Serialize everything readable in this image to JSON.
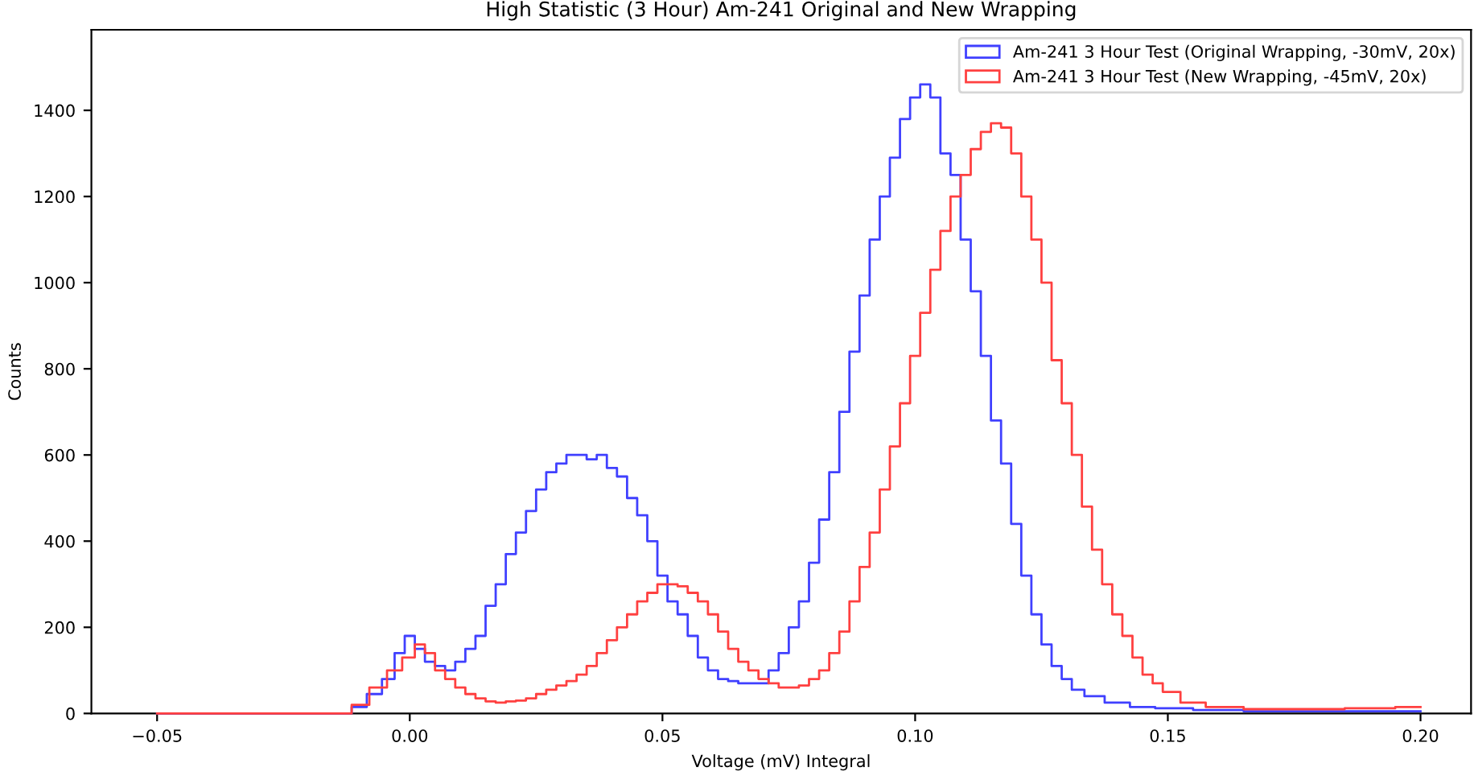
{
  "chart_data": {
    "type": "step",
    "title": "High Statistic (3 Hour) Am-241 Original and New Wrapping",
    "xlabel": "Voltage (mV) Integral",
    "ylabel": "Counts",
    "xlim": [
      -0.063,
      0.21
    ],
    "ylim": [
      0,
      1587
    ],
    "xticks": [
      {
        "value": -0.05,
        "label": "−0.05"
      },
      {
        "value": 0.0,
        "label": "0.00"
      },
      {
        "value": 0.05,
        "label": "0.05"
      },
      {
        "value": 0.1,
        "label": "0.10"
      },
      {
        "value": 0.15,
        "label": "0.15"
      },
      {
        "value": 0.2,
        "label": "0.20"
      }
    ],
    "yticks": [
      0,
      200,
      400,
      600,
      800,
      1000,
      1200,
      1400
    ],
    "grid": false,
    "legend": "top right",
    "series": [
      {
        "name": "Am-241 3 Hour Test (Original Wrapping, -30mV, 20x)",
        "color": "#4040ff",
        "x": [
          -0.05,
          -0.02,
          -0.013,
          -0.01,
          -0.007,
          -0.004,
          -0.002,
          0.0,
          0.002,
          0.004,
          0.006,
          0.008,
          0.01,
          0.012,
          0.014,
          0.016,
          0.018,
          0.02,
          0.022,
          0.024,
          0.026,
          0.028,
          0.03,
          0.032,
          0.034,
          0.036,
          0.038,
          0.04,
          0.042,
          0.044,
          0.046,
          0.048,
          0.05,
          0.052,
          0.054,
          0.056,
          0.058,
          0.06,
          0.062,
          0.064,
          0.066,
          0.068,
          0.07,
          0.072,
          0.074,
          0.076,
          0.078,
          0.08,
          0.082,
          0.084,
          0.086,
          0.088,
          0.09,
          0.092,
          0.094,
          0.096,
          0.098,
          0.1,
          0.102,
          0.104,
          0.106,
          0.108,
          0.11,
          0.112,
          0.114,
          0.116,
          0.118,
          0.12,
          0.122,
          0.124,
          0.126,
          0.128,
          0.13,
          0.132,
          0.135,
          0.14,
          0.145,
          0.15,
          0.16,
          0.17,
          0.18,
          0.19,
          0.2
        ],
        "values": [
          0,
          0,
          0,
          15,
          45,
          80,
          140,
          180,
          150,
          120,
          110,
          100,
          120,
          150,
          180,
          250,
          300,
          370,
          420,
          470,
          520,
          560,
          580,
          600,
          600,
          590,
          600,
          570,
          550,
          500,
          460,
          400,
          320,
          260,
          230,
          180,
          130,
          100,
          80,
          75,
          70,
          70,
          70,
          100,
          140,
          200,
          260,
          350,
          450,
          560,
          700,
          840,
          970,
          1100,
          1200,
          1290,
          1380,
          1430,
          1460,
          1430,
          1300,
          1250,
          1100,
          980,
          830,
          680,
          580,
          440,
          320,
          230,
          160,
          110,
          80,
          55,
          40,
          25,
          15,
          12,
          8,
          5,
          5,
          5,
          5
        ]
      },
      {
        "name": "Am-241 3 Hour Test (New Wrapping, -45mV, 20x)",
        "color": "#ff4040",
        "x": [
          -0.05,
          -0.013,
          -0.01,
          -0.006,
          -0.003,
          0.0,
          0.002,
          0.004,
          0.006,
          0.008,
          0.01,
          0.012,
          0.014,
          0.016,
          0.018,
          0.02,
          0.022,
          0.024,
          0.026,
          0.028,
          0.03,
          0.032,
          0.034,
          0.036,
          0.038,
          0.04,
          0.042,
          0.044,
          0.046,
          0.048,
          0.05,
          0.052,
          0.054,
          0.056,
          0.058,
          0.06,
          0.062,
          0.064,
          0.066,
          0.068,
          0.07,
          0.072,
          0.074,
          0.076,
          0.078,
          0.08,
          0.082,
          0.084,
          0.086,
          0.088,
          0.09,
          0.092,
          0.094,
          0.096,
          0.098,
          0.1,
          0.102,
          0.104,
          0.106,
          0.108,
          0.11,
          0.112,
          0.114,
          0.116,
          0.118,
          0.12,
          0.122,
          0.124,
          0.126,
          0.128,
          0.13,
          0.132,
          0.134,
          0.136,
          0.138,
          0.14,
          0.142,
          0.144,
          0.146,
          0.148,
          0.15,
          0.155,
          0.16,
          0.17,
          0.18,
          0.19,
          0.2
        ],
        "values": [
          0,
          0,
          20,
          60,
          100,
          130,
          160,
          140,
          100,
          80,
          60,
          45,
          35,
          28,
          25,
          28,
          30,
          35,
          45,
          55,
          65,
          75,
          90,
          110,
          140,
          170,
          200,
          230,
          260,
          280,
          300,
          300,
          295,
          280,
          260,
          230,
          190,
          150,
          120,
          100,
          80,
          70,
          60,
          60,
          65,
          80,
          100,
          140,
          190,
          260,
          340,
          420,
          520,
          620,
          720,
          830,
          930,
          1030,
          1120,
          1200,
          1250,
          1310,
          1350,
          1370,
          1360,
          1300,
          1200,
          1100,
          1000,
          820,
          720,
          600,
          480,
          380,
          300,
          230,
          180,
          130,
          90,
          70,
          50,
          25,
          15,
          10,
          10,
          12,
          15
        ]
      }
    ]
  }
}
